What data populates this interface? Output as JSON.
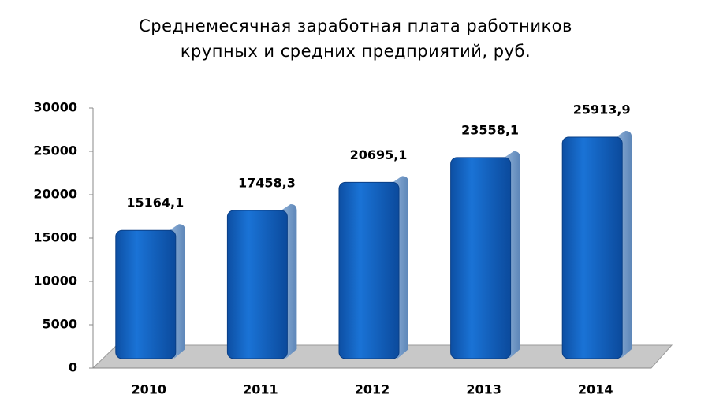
{
  "chart_data": {
    "type": "bar3d",
    "title": [
      "Среднемесячная заработная плата работников",
      "крупных и средних предприятий, руб."
    ],
    "categories": [
      "2010",
      "2011",
      "2012",
      "2013",
      "2014"
    ],
    "values": [
      15164.1,
      17458.3,
      20695.1,
      23558.1,
      25913.9
    ],
    "value_labels": [
      "15164,1",
      "17458,3",
      "20695,1",
      "23558,1",
      "25913,9"
    ],
    "color": "#1565c0",
    "ylim": [
      0,
      30000
    ],
    "yticks": [
      0,
      5000,
      10000,
      15000,
      20000,
      25000,
      30000
    ]
  }
}
